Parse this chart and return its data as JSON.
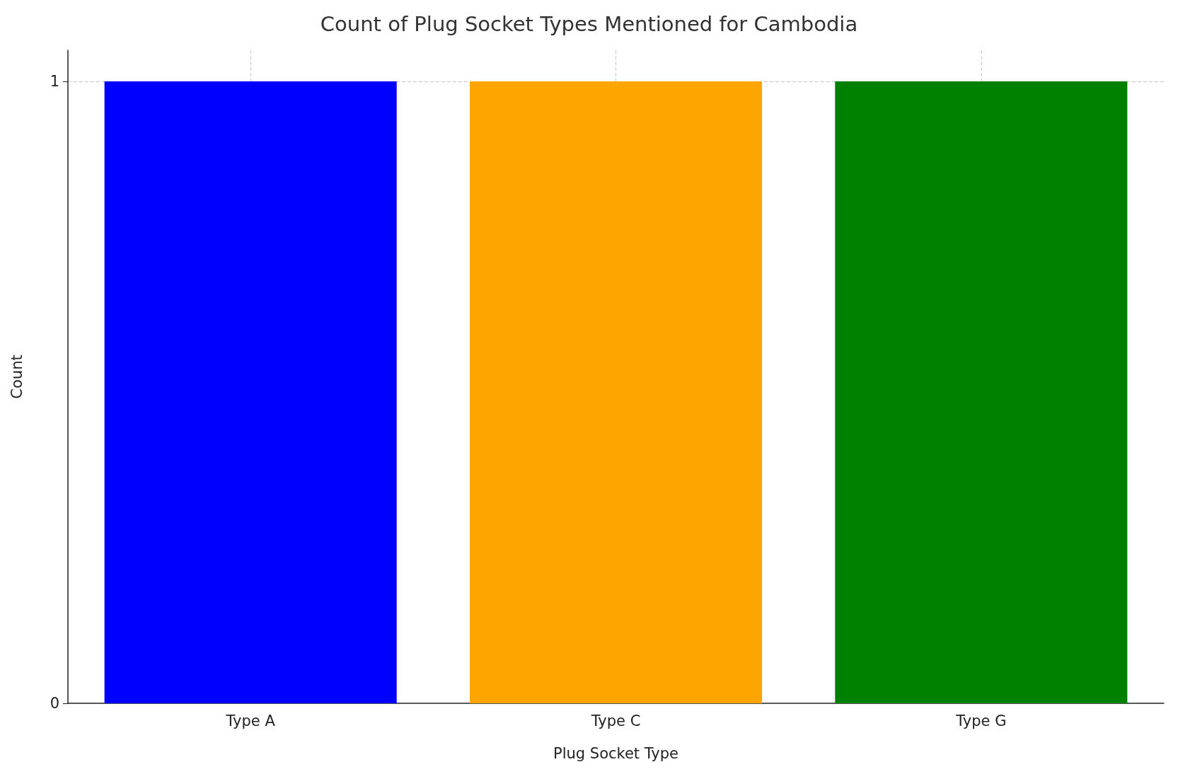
{
  "chart_data": {
    "type": "bar",
    "title": "Count of Plug Socket Types Mentioned for Cambodia",
    "xlabel": "Plug Socket Type",
    "ylabel": "Count",
    "categories": [
      "Type A",
      "Type C",
      "Type G"
    ],
    "values": [
      1,
      1,
      1
    ],
    "colors": [
      "#0000ff",
      "#ffa500",
      "#008000"
    ],
    "ylim": [
      0,
      1.05
    ],
    "yticks": [
      0,
      1
    ],
    "grid": true
  }
}
